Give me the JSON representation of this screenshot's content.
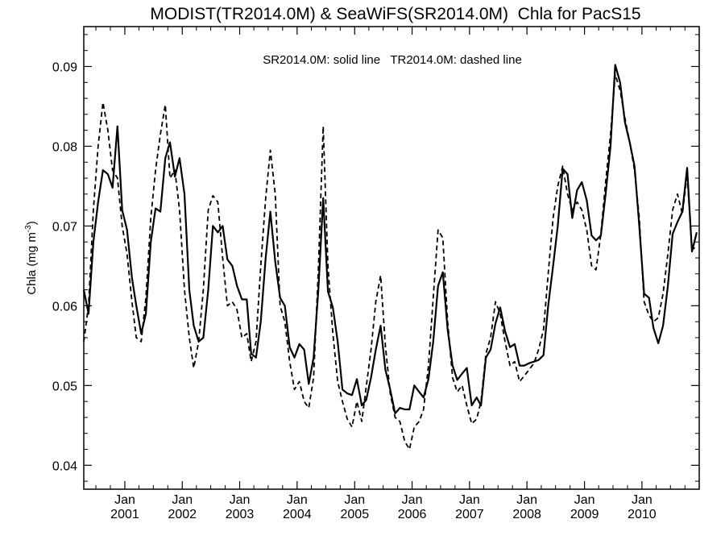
{
  "chart_data": {
    "type": "line",
    "title": "MODIST(TR2014.0M) & SeaWiFS(SR2014.0M)  Chla for PacS15",
    "annotation": "SR2014.0M: solid line   TR2014.0M: dashed line",
    "ylabel": "Chla (mg m",
    "ylabel_superscript": "-3",
    "ylabel_close": ")",
    "ylim": [
      0.037,
      0.095
    ],
    "xlim": [
      "2000-04-15",
      "2010-12-31"
    ],
    "y_ticks": [
      {
        "value": 0.04,
        "label": "0.04"
      },
      {
        "value": 0.05,
        "label": "0.05"
      },
      {
        "value": 0.06,
        "label": "0.06"
      },
      {
        "value": 0.07,
        "label": "0.07"
      },
      {
        "value": 0.08,
        "label": "0.08"
      },
      {
        "value": 0.09,
        "label": "0.09"
      }
    ],
    "x_ticks": [
      {
        "date": "2001-01-01",
        "label": "Jan",
        "year": "2001"
      },
      {
        "date": "2002-01-01",
        "label": "Jan",
        "year": "2002"
      },
      {
        "date": "2003-01-01",
        "label": "Jan",
        "year": "2003"
      },
      {
        "date": "2004-01-01",
        "label": "Jan",
        "year": "2004"
      },
      {
        "date": "2005-01-01",
        "label": "Jan",
        "year": "2005"
      },
      {
        "date": "2006-01-01",
        "label": "Jan",
        "year": "2006"
      },
      {
        "date": "2007-01-01",
        "label": "Jan",
        "year": "2007"
      },
      {
        "date": "2008-01-01",
        "label": "Jan",
        "year": "2008"
      },
      {
        "date": "2009-01-01",
        "label": "Jan",
        "year": "2009"
      },
      {
        "date": "2010-01-01",
        "label": "Jan",
        "year": "2010"
      }
    ],
    "grid": false,
    "series": [
      {
        "name": "SR2014.0M",
        "style": "solid",
        "color": "#000000",
        "x": [
          "2000-04-15",
          "2000-05-15",
          "2000-06-15",
          "2000-07-15",
          "2000-08-15",
          "2000-09-15",
          "2000-10-15",
          "2000-11-15",
          "2000-12-15",
          "2001-01-15",
          "2001-02-15",
          "2001-03-15",
          "2001-04-15",
          "2001-05-15",
          "2001-06-15",
          "2001-07-15",
          "2001-08-15",
          "2001-09-15",
          "2001-10-15",
          "2001-11-15",
          "2001-12-15",
          "2002-01-15",
          "2002-02-15",
          "2002-03-15",
          "2002-04-15",
          "2002-05-15",
          "2002-06-15",
          "2002-07-15",
          "2002-08-15",
          "2002-09-15",
          "2002-10-15",
          "2002-11-15",
          "2002-12-15",
          "2003-01-15",
          "2003-02-15",
          "2003-03-15",
          "2003-04-15",
          "2003-05-15",
          "2003-06-15",
          "2003-07-15",
          "2003-08-15",
          "2003-09-15",
          "2003-10-15",
          "2003-11-15",
          "2003-12-15",
          "2004-01-15",
          "2004-02-15",
          "2004-03-15",
          "2004-04-15",
          "2004-05-15",
          "2004-06-15",
          "2004-07-15",
          "2004-08-15",
          "2004-09-15",
          "2004-10-15",
          "2004-11-15",
          "2004-12-15",
          "2005-01-15",
          "2005-02-15",
          "2005-03-15",
          "2005-04-15",
          "2005-05-15",
          "2005-06-15",
          "2005-07-15",
          "2005-08-15",
          "2005-09-15",
          "2005-10-15",
          "2005-11-15",
          "2005-12-15",
          "2006-01-15",
          "2006-02-15",
          "2006-03-15",
          "2006-04-15",
          "2006-05-15",
          "2006-06-15",
          "2006-07-15",
          "2006-08-15",
          "2006-09-15",
          "2006-10-15",
          "2006-11-15",
          "2006-12-15",
          "2007-01-15",
          "2007-02-15",
          "2007-03-15",
          "2007-04-15",
          "2007-05-15",
          "2007-06-15",
          "2007-07-15",
          "2007-08-15",
          "2007-09-15",
          "2007-10-15",
          "2007-11-15",
          "2007-12-15",
          "2008-01-15",
          "2008-02-15",
          "2008-03-15",
          "2008-04-15",
          "2008-05-15",
          "2008-06-15",
          "2008-07-15",
          "2008-08-15",
          "2008-09-15",
          "2008-10-15",
          "2008-11-15",
          "2008-12-15",
          "2009-01-15",
          "2009-02-15",
          "2009-03-15",
          "2009-04-15",
          "2009-05-15",
          "2009-06-15",
          "2009-07-15",
          "2009-08-15",
          "2009-09-15",
          "2009-10-15",
          "2009-11-15",
          "2009-12-15",
          "2010-01-15",
          "2010-02-15",
          "2010-03-15",
          "2010-04-15",
          "2010-05-15",
          "2010-06-15",
          "2010-07-15",
          "2010-08-15",
          "2010-09-15",
          "2010-10-15",
          "2010-11-15",
          "2010-12-15"
        ],
        "y": [
          0.062,
          0.059,
          0.068,
          0.073,
          0.077,
          0.0765,
          0.0748,
          0.0825,
          0.072,
          0.0695,
          0.0635,
          0.06,
          0.0565,
          0.059,
          0.068,
          0.0722,
          0.0718,
          0.0785,
          0.0805,
          0.0762,
          0.0785,
          0.074,
          0.062,
          0.0575,
          0.0555,
          0.056,
          0.062,
          0.07,
          0.0692,
          0.07,
          0.0658,
          0.065,
          0.0625,
          0.0608,
          0.0608,
          0.054,
          0.0535,
          0.058,
          0.066,
          0.0718,
          0.0655,
          0.061,
          0.06,
          0.0548,
          0.0535,
          0.0552,
          0.0545,
          0.0502,
          0.0535,
          0.062,
          0.0735,
          0.0618,
          0.0598,
          0.0555,
          0.0495,
          0.049,
          0.0488,
          0.0508,
          0.0475,
          0.0482,
          0.051,
          0.0545,
          0.0575,
          0.052,
          0.0495,
          0.0465,
          0.0472,
          0.047,
          0.047,
          0.05,
          0.0492,
          0.0485,
          0.0508,
          0.0555,
          0.0625,
          0.0642,
          0.057,
          0.0525,
          0.0507,
          0.0515,
          0.0522,
          0.0475,
          0.0485,
          0.0475,
          0.0535,
          0.0545,
          0.0578,
          0.0598,
          0.0568,
          0.0548,
          0.0552,
          0.0525,
          0.0525,
          0.0528,
          0.053,
          0.0532,
          0.0538,
          0.06,
          0.065,
          0.07,
          0.0772,
          0.0765,
          0.071,
          0.0745,
          0.0755,
          0.0732,
          0.0688,
          0.0682,
          0.0688,
          0.074,
          0.08,
          0.0902,
          0.088,
          0.083,
          0.0805,
          0.0775,
          0.07,
          0.0615,
          0.061,
          0.0572,
          0.0553,
          0.0575,
          0.0625,
          0.069,
          0.0705,
          0.0718,
          0.0773,
          0.0668,
          0.0692
        ]
      },
      {
        "name": "TR2014.0M",
        "style": "dashed",
        "color": "#000000",
        "x": [
          "2000-04-15",
          "2000-05-15",
          "2000-06-15",
          "2000-07-15",
          "2000-08-15",
          "2000-09-15",
          "2000-10-15",
          "2000-11-15",
          "2000-12-15",
          "2001-01-15",
          "2001-02-15",
          "2001-03-15",
          "2001-04-15",
          "2001-05-15",
          "2001-06-15",
          "2001-07-15",
          "2001-08-15",
          "2001-09-15",
          "2001-10-15",
          "2001-11-15",
          "2001-12-15",
          "2002-01-15",
          "2002-02-15",
          "2002-03-15",
          "2002-04-15",
          "2002-05-15",
          "2002-06-15",
          "2002-07-15",
          "2002-08-15",
          "2002-09-15",
          "2002-10-15",
          "2002-11-15",
          "2002-12-15",
          "2003-01-15",
          "2003-02-15",
          "2003-03-15",
          "2003-04-15",
          "2003-05-15",
          "2003-06-15",
          "2003-07-15",
          "2003-08-15",
          "2003-09-15",
          "2003-10-15",
          "2003-11-15",
          "2003-12-15",
          "2004-01-15",
          "2004-02-15",
          "2004-03-15",
          "2004-04-15",
          "2004-05-15",
          "2004-06-15",
          "2004-07-15",
          "2004-08-15",
          "2004-09-15",
          "2004-10-15",
          "2004-11-15",
          "2004-12-15",
          "2005-01-15",
          "2005-02-15",
          "2005-03-15",
          "2005-04-15",
          "2005-05-15",
          "2005-06-15",
          "2005-07-15",
          "2005-08-15",
          "2005-09-15",
          "2005-10-15",
          "2005-11-15",
          "2005-12-15",
          "2006-01-15",
          "2006-02-15",
          "2006-03-15",
          "2006-04-15",
          "2006-05-15",
          "2006-06-15",
          "2006-07-15",
          "2006-08-15",
          "2006-09-15",
          "2006-10-15",
          "2006-11-15",
          "2006-12-15",
          "2007-01-15",
          "2007-02-15",
          "2007-03-15",
          "2007-04-15",
          "2007-05-15",
          "2007-06-15",
          "2007-07-15",
          "2007-08-15",
          "2007-09-15",
          "2007-10-15",
          "2007-11-15",
          "2007-12-15",
          "2008-01-15",
          "2008-02-15",
          "2008-03-15",
          "2008-04-15",
          "2008-05-15",
          "2008-06-15",
          "2008-07-15",
          "2008-08-15",
          "2008-09-15",
          "2008-10-15",
          "2008-11-15",
          "2008-12-15",
          "2009-01-15",
          "2009-02-15",
          "2009-03-15",
          "2009-04-15",
          "2009-05-15",
          "2009-06-15",
          "2009-07-15",
          "2009-08-15",
          "2009-09-15",
          "2009-10-15",
          "2009-11-15",
          "2009-12-15",
          "2010-01-15",
          "2010-02-15",
          "2010-03-15",
          "2010-04-15",
          "2010-05-15",
          "2010-06-15",
          "2010-07-15",
          "2010-08-15",
          "2010-09-15",
          "2010-10-15",
          "2010-11-15",
          "2010-12-15"
        ],
        "y": [
          0.0555,
          0.06,
          0.072,
          0.08,
          0.0855,
          0.082,
          0.077,
          0.076,
          0.07,
          0.0665,
          0.0605,
          0.056,
          0.0555,
          0.061,
          0.071,
          0.077,
          0.0815,
          0.0852,
          0.076,
          0.077,
          0.072,
          0.062,
          0.056,
          0.0522,
          0.0555,
          0.062,
          0.072,
          0.0738,
          0.073,
          0.066,
          0.06,
          0.0605,
          0.0595,
          0.056,
          0.0565,
          0.053,
          0.0555,
          0.065,
          0.0735,
          0.0795,
          0.074,
          0.06,
          0.058,
          0.053,
          0.0495,
          0.0505,
          0.048,
          0.0472,
          0.051,
          0.0645,
          0.0825,
          0.065,
          0.0565,
          0.0505,
          0.048,
          0.0458,
          0.0448,
          0.048,
          0.0455,
          0.0498,
          0.0545,
          0.0605,
          0.0638,
          0.055,
          0.049,
          0.046,
          0.0455,
          0.043,
          0.042,
          0.0448,
          0.0455,
          0.047,
          0.0525,
          0.061,
          0.0695,
          0.0685,
          0.058,
          0.051,
          0.0492,
          0.05,
          0.0475,
          0.0452,
          0.0458,
          0.048,
          0.054,
          0.056,
          0.0605,
          0.059,
          0.0555,
          0.0525,
          0.053,
          0.0505,
          0.0512,
          0.052,
          0.0528,
          0.0545,
          0.057,
          0.064,
          0.071,
          0.075,
          0.0775,
          0.074,
          0.072,
          0.073,
          0.072,
          0.0695,
          0.065,
          0.0645,
          0.069,
          0.0755,
          0.0815,
          0.089,
          0.087,
          0.0835,
          0.0805,
          0.077,
          0.071,
          0.0605,
          0.0588,
          0.058,
          0.0585,
          0.0615,
          0.0665,
          0.072,
          0.074,
          0.0715,
          0.0765,
          0.067,
          0.0675
        ]
      }
    ]
  }
}
